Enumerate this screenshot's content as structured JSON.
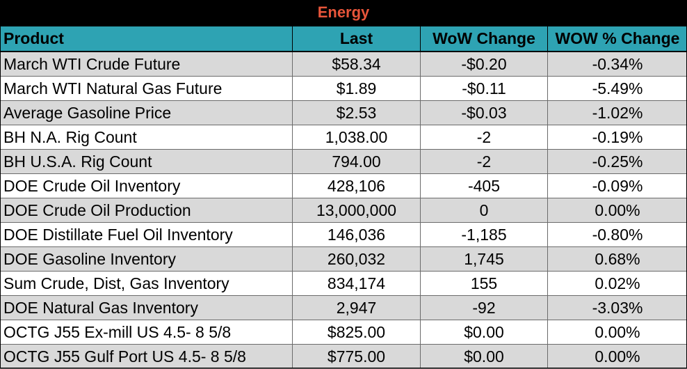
{
  "title": "Energy",
  "colors": {
    "title_bg": "#000000",
    "title_text": "#e8553a",
    "header_bg": "#2ea3b3",
    "row_shade": "#d9d9d9",
    "row_plain": "#ffffff"
  },
  "headers": [
    "Product",
    "Last",
    "WoW Change",
    "WOW % Change"
  ],
  "rows": [
    {
      "product": "March WTI Crude Future",
      "last": "$58.34",
      "wow": "-$0.20",
      "pct": "-0.34%"
    },
    {
      "product": "March WTI Natural Gas Future",
      "last": "$1.89",
      "wow": "-$0.11",
      "pct": "-5.49%"
    },
    {
      "product": "Average Gasoline Price",
      "last": "$2.53",
      "wow": "-$0.03",
      "pct": "-1.02%"
    },
    {
      "product": "BH N.A. Rig Count",
      "last": "1,038.00",
      "wow": "-2",
      "pct": "-0.19%"
    },
    {
      "product": "BH U.S.A. Rig Count",
      "last": "794.00",
      "wow": "-2",
      "pct": "-0.25%"
    },
    {
      "product": "DOE Crude Oil Inventory",
      "last": "428,106",
      "wow": "-405",
      "pct": "-0.09%"
    },
    {
      "product": "DOE Crude Oil Production",
      "last": "13,000,000",
      "wow": "0",
      "pct": "0.00%"
    },
    {
      "product": "DOE Distillate Fuel Oil Inventory",
      "last": "146,036",
      "wow": "-1,185",
      "pct": "-0.80%"
    },
    {
      "product": "DOE Gasoline Inventory",
      "last": "260,032",
      "wow": "1,745",
      "pct": "0.68%"
    },
    {
      "product": "Sum Crude, Dist, Gas Inventory",
      "last": "834,174",
      "wow": "155",
      "pct": "0.02%"
    },
    {
      "product": "DOE Natural Gas Inventory",
      "last": "2,947",
      "wow": "-92",
      "pct": "-3.03%"
    },
    {
      "product": "OCTG J55 Ex-mill US 4.5- 8 5/8",
      "last": "$825.00",
      "wow": "$0.00",
      "pct": "0.00%"
    },
    {
      "product": "OCTG J55 Gulf Port US 4.5- 8 5/8",
      "last": "$775.00",
      "wow": "$0.00",
      "pct": "0.00%"
    }
  ]
}
